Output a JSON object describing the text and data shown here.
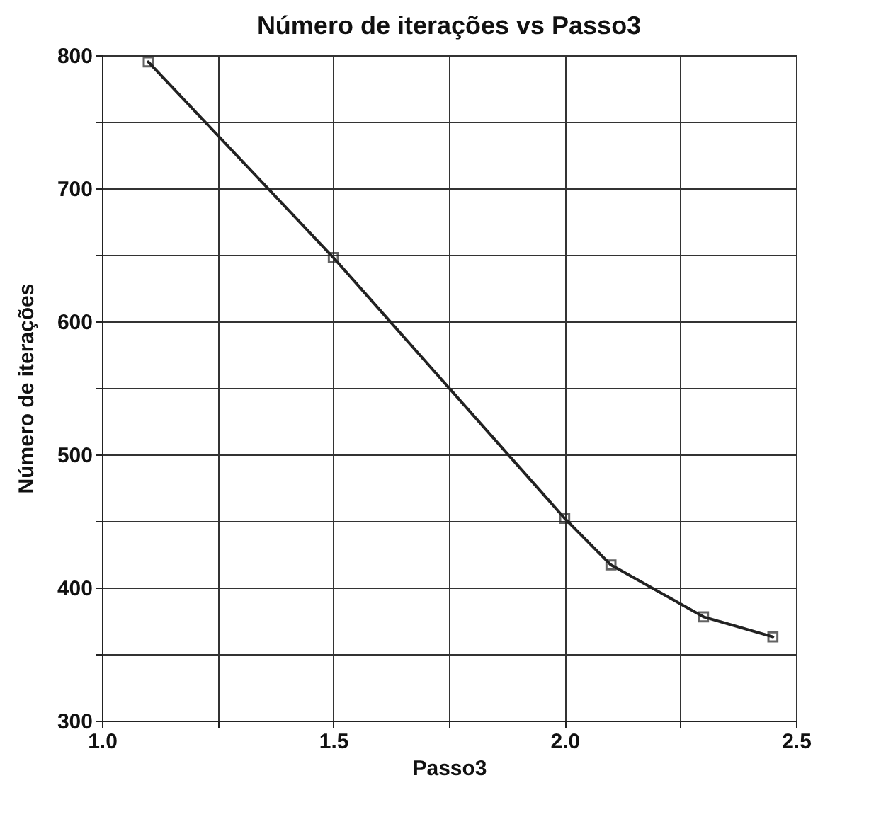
{
  "chart_data": {
    "type": "line",
    "title": "Número de iterações vs Passo3",
    "xlabel": "Passo3",
    "ylabel": "Número de iterações",
    "x": [
      1.1,
      1.5,
      2.0,
      2.1,
      2.3,
      2.45
    ],
    "series": [
      {
        "color": "#222222",
        "values": [
          795,
          648,
          452,
          417,
          378,
          363
        ]
      }
    ],
    "xlim": [
      1.0,
      2.5
    ],
    "xticks": [
      {
        "value": 1.0,
        "label": "1.0"
      },
      {
        "value": 1.25,
        "label": null
      },
      {
        "value": 1.5,
        "label": "1.5"
      },
      {
        "value": 1.75,
        "label": null
      },
      {
        "value": 2.0,
        "label": "2.0"
      },
      {
        "value": 2.25,
        "label": null
      },
      {
        "value": 2.5,
        "label": "2.5"
      }
    ],
    "ylim": [
      300,
      800
    ],
    "yticks": [
      300,
      {
        "value": 350,
        "label": null
      },
      400,
      {
        "value": 450,
        "label": null
      },
      500,
      {
        "value": 550,
        "label": null
      },
      600,
      {
        "value": 650,
        "label": null
      },
      700,
      {
        "value": 750,
        "label": null
      },
      800
    ],
    "grid": true,
    "marker": "square",
    "line_style": "solid",
    "legend": false
  }
}
